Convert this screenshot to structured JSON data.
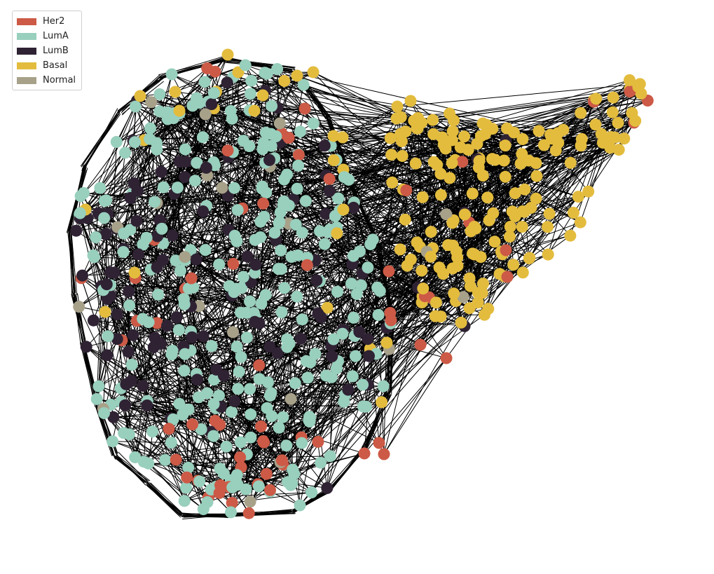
{
  "legend": {
    "items": [
      {
        "label": "Her2",
        "color": "#cc5a46"
      },
      {
        "label": "LumA",
        "color": "#98cfbd"
      },
      {
        "label": "LumB",
        "color": "#2e2233"
      },
      {
        "label": "Basal",
        "color": "#e3bc3e"
      },
      {
        "label": "Normal",
        "color": "#a8a18a"
      }
    ]
  },
  "graph": {
    "edge_color": "#000000",
    "node_edge_color": "none"
  }
}
